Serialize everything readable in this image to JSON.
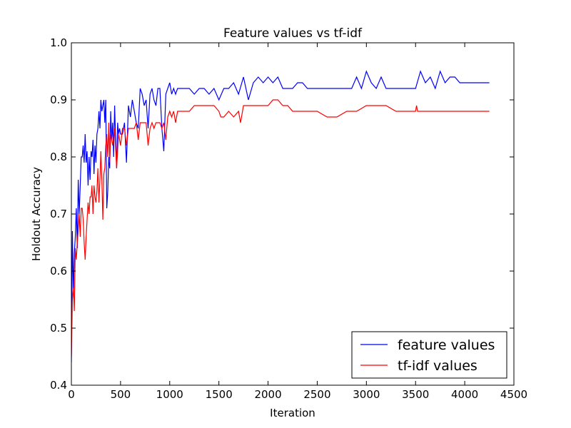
{
  "chart_data": {
    "type": "line",
    "title": "Feature values vs tf-idf",
    "xlabel": "Iteration",
    "ylabel": "Holdout Accuracy",
    "xlim": [
      0,
      4500
    ],
    "ylim": [
      0.4,
      1.0
    ],
    "xticks": [
      "0",
      "500",
      "1000",
      "1500",
      "2000",
      "2500",
      "3000",
      "3500",
      "4000",
      "4500"
    ],
    "yticks": [
      "0.4",
      "0.5",
      "0.6",
      "0.7",
      "0.8",
      "0.9",
      "1.0"
    ],
    "grid": false,
    "legend_position": "lower-right",
    "series": [
      {
        "name": "feature values",
        "color": "#0000ff",
        "x": [
          0,
          10,
          20,
          30,
          40,
          50,
          60,
          70,
          80,
          90,
          100,
          110,
          120,
          130,
          140,
          150,
          160,
          170,
          180,
          190,
          200,
          210,
          220,
          230,
          240,
          250,
          260,
          270,
          280,
          290,
          300,
          310,
          320,
          330,
          340,
          350,
          360,
          370,
          380,
          390,
          400,
          410,
          420,
          430,
          440,
          450,
          460,
          470,
          480,
          490,
          500,
          520,
          540,
          560,
          580,
          600,
          620,
          640,
          660,
          680,
          700,
          720,
          740,
          760,
          780,
          800,
          820,
          840,
          860,
          880,
          900,
          920,
          940,
          960,
          980,
          1000,
          1020,
          1040,
          1060,
          1080,
          1100,
          1150,
          1200,
          1250,
          1300,
          1350,
          1400,
          1450,
          1500,
          1550,
          1600,
          1650,
          1700,
          1750,
          1800,
          1850,
          1900,
          1950,
          2000,
          2050,
          2100,
          2150,
          2200,
          2250,
          2300,
          2350,
          2400,
          2500,
          2600,
          2700,
          2800,
          2850,
          2900,
          2950,
          3000,
          3050,
          3100,
          3150,
          3200,
          3300,
          3400,
          3500,
          3550,
          3600,
          3650,
          3700,
          3750,
          3800,
          3850,
          3900,
          3950,
          4000,
          4050,
          4100,
          4150,
          4200,
          4250
        ],
        "y": [
          0.44,
          0.67,
          0.56,
          0.63,
          0.66,
          0.71,
          0.64,
          0.76,
          0.7,
          0.75,
          0.8,
          0.8,
          0.82,
          0.79,
          0.84,
          0.79,
          0.81,
          0.75,
          0.8,
          0.76,
          0.81,
          0.8,
          0.83,
          0.77,
          0.82,
          0.79,
          0.84,
          0.85,
          0.88,
          0.85,
          0.9,
          0.88,
          0.89,
          0.9,
          0.86,
          0.9,
          0.71,
          0.74,
          0.8,
          0.78,
          0.88,
          0.83,
          0.86,
          0.8,
          0.89,
          0.83,
          0.78,
          0.86,
          0.84,
          0.85,
          0.84,
          0.84,
          0.86,
          0.79,
          0.89,
          0.87,
          0.9,
          0.88,
          0.86,
          0.85,
          0.92,
          0.91,
          0.89,
          0.9,
          0.85,
          0.91,
          0.92,
          0.9,
          0.89,
          0.92,
          0.92,
          0.85,
          0.81,
          0.91,
          0.92,
          0.93,
          0.91,
          0.92,
          0.91,
          0.92,
          0.92,
          0.92,
          0.92,
          0.91,
          0.92,
          0.92,
          0.91,
          0.92,
          0.9,
          0.92,
          0.92,
          0.93,
          0.91,
          0.94,
          0.9,
          0.93,
          0.94,
          0.93,
          0.94,
          0.93,
          0.94,
          0.92,
          0.92,
          0.92,
          0.93,
          0.93,
          0.92,
          0.92,
          0.92,
          0.92,
          0.92,
          0.92,
          0.94,
          0.92,
          0.95,
          0.93,
          0.92,
          0.94,
          0.92,
          0.92,
          0.92,
          0.92,
          0.95,
          0.93,
          0.94,
          0.92,
          0.95,
          0.93,
          0.94,
          0.94,
          0.93,
          0.93,
          0.93,
          0.93,
          0.93,
          0.93,
          0.93
        ]
      },
      {
        "name": "tf-idf values",
        "color": "#ff0000",
        "x": [
          0,
          10,
          20,
          30,
          40,
          50,
          60,
          70,
          80,
          90,
          100,
          110,
          120,
          130,
          140,
          150,
          160,
          170,
          180,
          190,
          200,
          210,
          220,
          230,
          240,
          250,
          260,
          270,
          280,
          290,
          300,
          310,
          320,
          330,
          340,
          350,
          360,
          370,
          380,
          390,
          400,
          420,
          440,
          460,
          480,
          500,
          520,
          540,
          560,
          580,
          600,
          620,
          640,
          660,
          680,
          700,
          720,
          740,
          760,
          780,
          800,
          820,
          840,
          860,
          880,
          900,
          920,
          940,
          960,
          980,
          1000,
          1020,
          1040,
          1060,
          1080,
          1100,
          1150,
          1200,
          1250,
          1300,
          1350,
          1400,
          1450,
          1500,
          1520,
          1550,
          1600,
          1650,
          1700,
          1720,
          1750,
          1800,
          1850,
          1900,
          1950,
          2000,
          2050,
          2100,
          2150,
          2200,
          2250,
          2300,
          2400,
          2500,
          2600,
          2700,
          2800,
          2900,
          3000,
          3100,
          3200,
          3300,
          3400,
          3500,
          3510,
          3520,
          3600,
          3700,
          3800,
          3900,
          4000,
          4100,
          4200,
          4250
        ],
        "y": [
          0.45,
          0.55,
          0.57,
          0.53,
          0.64,
          0.62,
          0.65,
          0.67,
          0.7,
          0.66,
          0.71,
          0.71,
          0.69,
          0.65,
          0.62,
          0.66,
          0.69,
          0.72,
          0.7,
          0.73,
          0.73,
          0.75,
          0.7,
          0.75,
          0.73,
          0.72,
          0.74,
          0.78,
          0.72,
          0.76,
          0.81,
          0.76,
          0.69,
          0.77,
          0.78,
          0.82,
          0.84,
          0.8,
          0.86,
          0.79,
          0.84,
          0.82,
          0.85,
          0.78,
          0.84,
          0.82,
          0.85,
          0.85,
          0.82,
          0.85,
          0.85,
          0.85,
          0.85,
          0.86,
          0.83,
          0.86,
          0.86,
          0.86,
          0.86,
          0.82,
          0.85,
          0.86,
          0.85,
          0.86,
          0.86,
          0.86,
          0.85,
          0.86,
          0.83,
          0.87,
          0.88,
          0.87,
          0.88,
          0.86,
          0.88,
          0.88,
          0.88,
          0.88,
          0.89,
          0.89,
          0.89,
          0.89,
          0.89,
          0.88,
          0.87,
          0.87,
          0.88,
          0.87,
          0.88,
          0.86,
          0.89,
          0.89,
          0.89,
          0.89,
          0.89,
          0.89,
          0.9,
          0.9,
          0.89,
          0.89,
          0.88,
          0.88,
          0.88,
          0.88,
          0.87,
          0.87,
          0.88,
          0.88,
          0.89,
          0.89,
          0.89,
          0.88,
          0.88,
          0.88,
          0.89,
          0.88,
          0.88,
          0.88,
          0.88,
          0.88,
          0.88,
          0.88,
          0.88,
          0.88
        ]
      }
    ]
  }
}
